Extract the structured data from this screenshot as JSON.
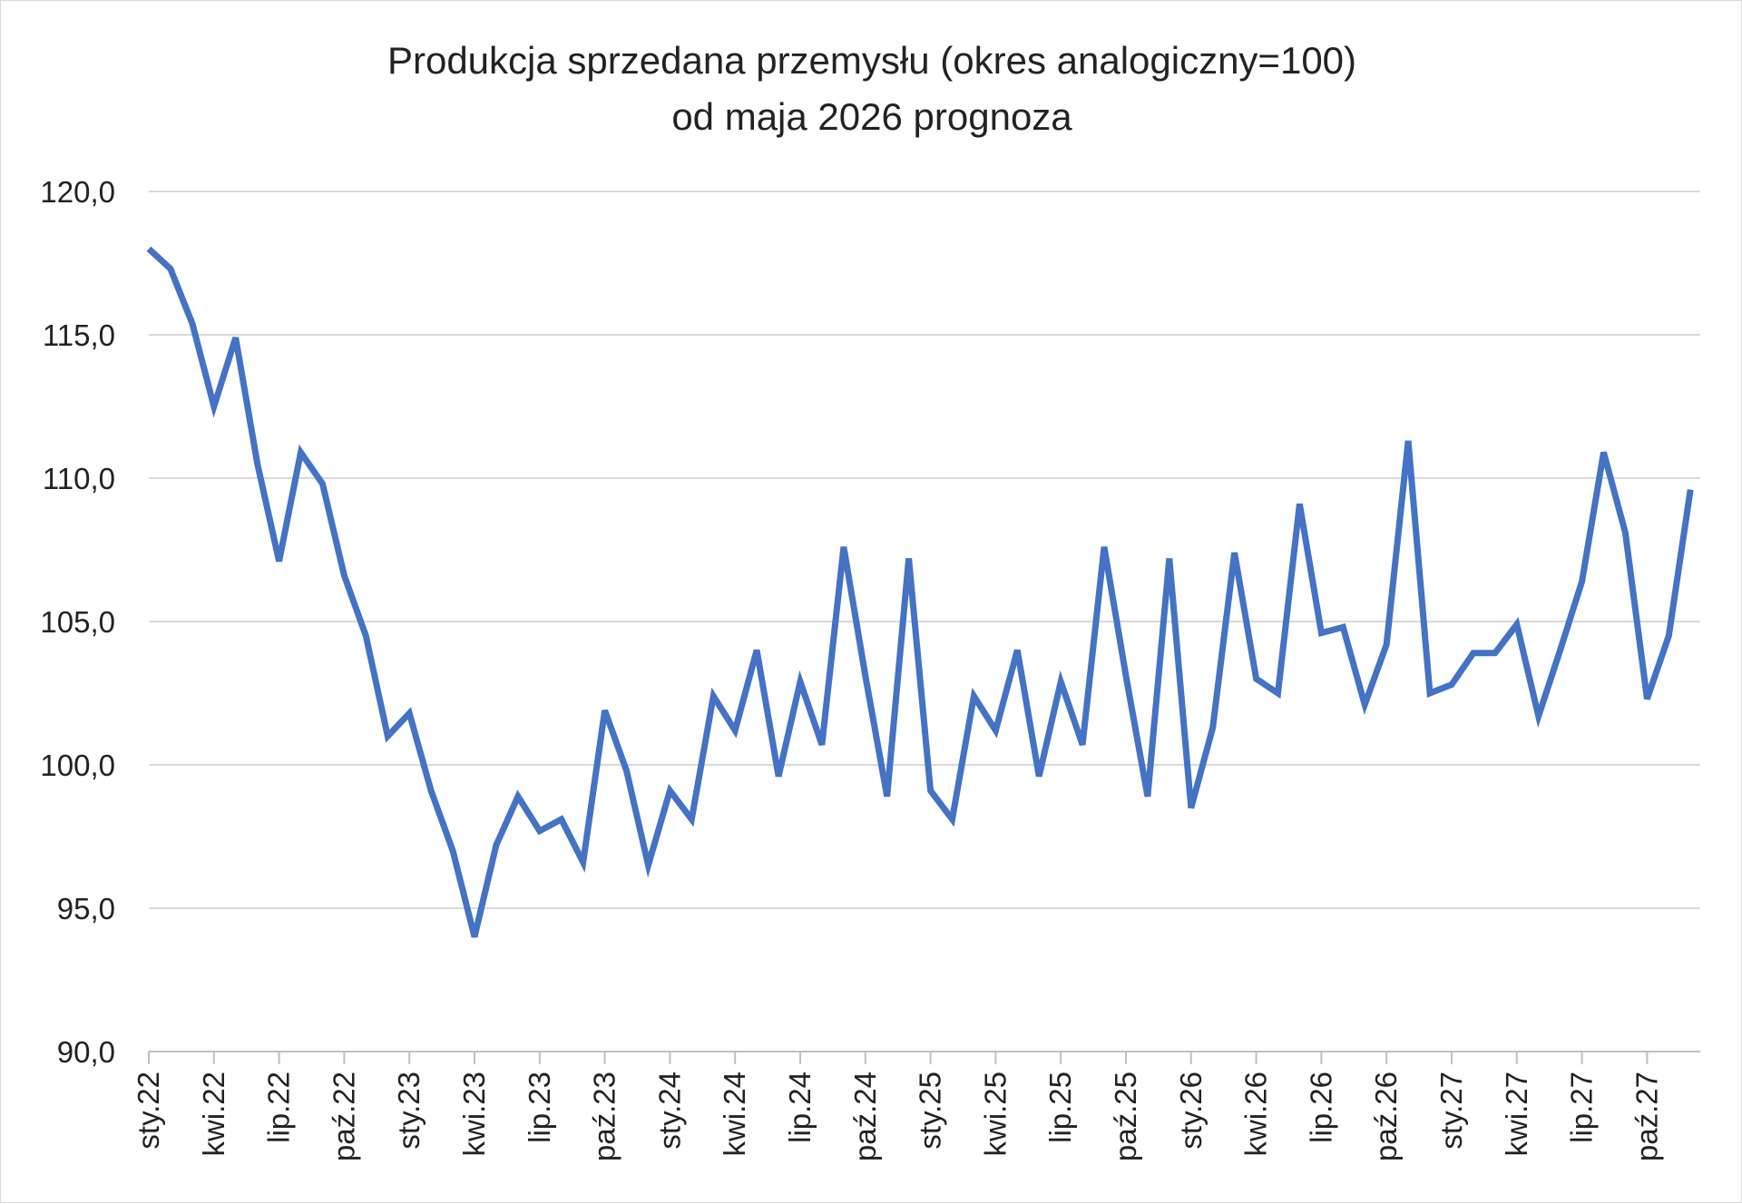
{
  "chart_data": {
    "type": "line",
    "title": "Produkcja sprzedana przemysłu (okres analogiczny=100)",
    "subtitle": "od maja 2026 prognoza",
    "ylim": [
      90,
      120
    ],
    "y_ticks": [
      "90,0",
      "95,0",
      "100,0",
      "105,0",
      "110,0",
      "115,0",
      "120,0"
    ],
    "y_tick_values": [
      90,
      95,
      100,
      105,
      110,
      115,
      120
    ],
    "grid": true,
    "x_tick_labels": [
      "sty.22",
      "kwi.22",
      "lip.22",
      "paź.22",
      "sty.23",
      "kwi.23",
      "lip.23",
      "paź.23",
      "sty.24",
      "kwi.24",
      "lip.24",
      "paź.24",
      "sty.25",
      "kwi.25",
      "lip.25",
      "paź.25",
      "sty.26",
      "kwi.26",
      "lip.26",
      "paź.26",
      "sty.27",
      "kwi.27",
      "lip.27",
      "paź.27"
    ],
    "x_tick_every": 3,
    "series": [
      {
        "color": "#4472c4",
        "values": [
          118.0,
          117.3,
          115.4,
          112.5,
          114.9,
          110.5,
          107.1,
          110.9,
          109.8,
          106.6,
          104.5,
          101.0,
          101.8,
          99.1,
          97.0,
          94.0,
          97.2,
          98.9,
          97.7,
          98.1,
          96.6,
          101.9,
          99.8,
          96.5,
          99.1,
          98.1,
          102.4,
          101.2,
          104.0,
          99.6,
          102.9,
          100.7,
          107.6,
          103.1,
          98.9,
          107.2,
          99.1,
          98.1,
          102.4,
          101.2,
          104.0,
          99.6,
          102.9,
          100.7,
          107.6,
          103.1,
          98.9,
          107.2,
          98.5,
          101.3,
          107.4,
          103.0,
          102.5,
          109.1,
          104.6,
          104.8,
          102.1,
          104.2,
          111.3,
          102.5,
          102.8,
          103.9,
          103.9,
          104.9,
          101.7,
          104.0,
          106.4,
          110.9,
          108.1,
          102.3,
          104.5,
          109.6
        ]
      }
    ]
  }
}
